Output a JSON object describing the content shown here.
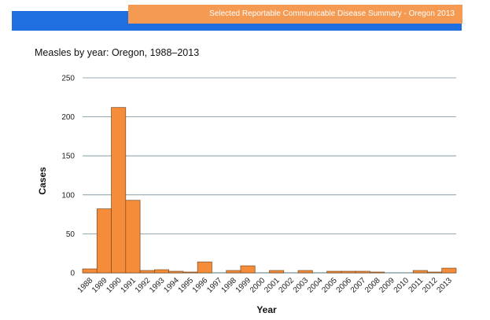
{
  "header": {
    "banner_text": "Selected Reportable Communicable Disease Summary - Oregon 2013"
  },
  "colors": {
    "accent_blue": "#1f6fe0",
    "banner_orange": "#f59a52",
    "bar_fill": "#f58c3a",
    "bar_stroke": "#7a4a1f",
    "gridline": "#6f8f97"
  },
  "chart_data": {
    "type": "bar",
    "title": "Measles by year: Oregon, 1988–2013",
    "xlabel": "Year",
    "ylabel": "Cases",
    "ylim": [
      0,
      250
    ],
    "yticks": [
      0,
      50,
      100,
      150,
      200,
      250
    ],
    "grid": true,
    "categories": [
      "1988",
      "1989",
      "1990",
      "1991",
      "1992",
      "1993",
      "1994",
      "1995",
      "1996",
      "1997",
      "1998",
      "1999",
      "2000",
      "2001",
      "2002",
      "2003",
      "2004",
      "2005",
      "2006",
      "2007",
      "2008",
      "2009",
      "2010",
      "2011",
      "2012",
      "2013"
    ],
    "values": [
      5,
      82,
      212,
      93,
      3,
      4,
      2,
      1,
      14,
      0,
      3,
      9,
      0,
      3,
      0,
      3,
      0,
      2,
      2,
      2,
      1,
      0,
      0,
      3,
      1,
      6
    ]
  }
}
